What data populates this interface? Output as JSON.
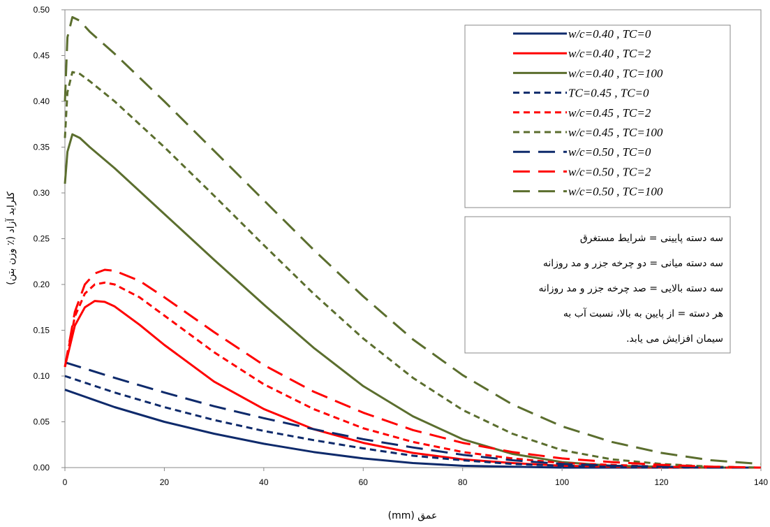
{
  "chart_data": {
    "type": "line",
    "xlabel": "عمق (mm)",
    "ylabel": "کلراید آزاد (٪ وزن بتن)",
    "xlim": [
      0,
      140
    ],
    "ylim": [
      0,
      0.5
    ],
    "x_ticks": [
      "0",
      "20",
      "40",
      "60",
      "80",
      "100",
      "120",
      "140"
    ],
    "y_ticks": [
      "0.00",
      "0.05",
      "0.10",
      "0.15",
      "0.20",
      "0.25",
      "0.30",
      "0.35",
      "0.40",
      "0.45",
      "0.50"
    ],
    "grid": false,
    "legend_position": "top-right",
    "colors": {
      "navy": "#0e2a6b",
      "red": "#ff0000",
      "olive": "#5b6e2e"
    },
    "series": [
      {
        "name": "w/c=0.40 , TC=0",
        "color": "navy",
        "dash": "solid",
        "x": [
          0,
          10,
          20,
          30,
          40,
          50,
          60,
          70,
          80,
          90,
          100,
          110,
          120,
          130,
          140
        ],
        "y": [
          0.085,
          0.066,
          0.05,
          0.037,
          0.026,
          0.017,
          0.01,
          0.005,
          0.002,
          0.001,
          0.0,
          0.0,
          0.0,
          0.0,
          0.0
        ]
      },
      {
        "name": "w/c=0.40 , TC=2",
        "color": "red",
        "dash": "solid",
        "x": [
          0,
          2,
          4,
          6,
          8,
          10,
          15,
          20,
          30,
          40,
          50,
          60,
          70,
          80,
          90,
          100,
          110,
          120,
          130,
          140
        ],
        "y": [
          0.11,
          0.155,
          0.175,
          0.182,
          0.181,
          0.176,
          0.156,
          0.134,
          0.094,
          0.064,
          0.042,
          0.027,
          0.016,
          0.009,
          0.005,
          0.002,
          0.001,
          0.0,
          0.0,
          0.0
        ]
      },
      {
        "name": "w/c=0.40 , TC=100",
        "color": "olive",
        "dash": "solid",
        "x": [
          0,
          0.5,
          1.5,
          3,
          5,
          10,
          20,
          30,
          40,
          50,
          60,
          70,
          80,
          90,
          100,
          110,
          120,
          130,
          140
        ],
        "y": [
          0.31,
          0.345,
          0.364,
          0.36,
          0.35,
          0.327,
          0.277,
          0.227,
          0.178,
          0.131,
          0.089,
          0.056,
          0.031,
          0.015,
          0.006,
          0.002,
          0.001,
          0.0,
          0.0
        ]
      },
      {
        "name": "TC=0.45 , TC=0",
        "color": "navy",
        "dash": "short",
        "x": [
          0,
          10,
          20,
          30,
          40,
          50,
          60,
          70,
          80,
          90,
          100,
          110,
          120,
          130,
          140
        ],
        "y": [
          0.1,
          0.082,
          0.066,
          0.052,
          0.04,
          0.03,
          0.021,
          0.013,
          0.008,
          0.004,
          0.002,
          0.001,
          0.0,
          0.0,
          0.0
        ]
      },
      {
        "name": "w/c=0.45 , TC=2",
        "color": "red",
        "dash": "short",
        "x": [
          0,
          2,
          4,
          6,
          8,
          10,
          15,
          20,
          30,
          40,
          50,
          60,
          70,
          80,
          90,
          100,
          110,
          120,
          130,
          140
        ],
        "y": [
          0.11,
          0.165,
          0.19,
          0.2,
          0.202,
          0.2,
          0.186,
          0.166,
          0.126,
          0.091,
          0.064,
          0.043,
          0.028,
          0.017,
          0.01,
          0.005,
          0.003,
          0.001,
          0.0,
          0.0
        ]
      },
      {
        "name": "w/c=0.45 , TC=100",
        "color": "olive",
        "dash": "short",
        "x": [
          0,
          0.5,
          1.5,
          3,
          5,
          10,
          20,
          30,
          40,
          50,
          60,
          70,
          80,
          90,
          100,
          110,
          120,
          130,
          140
        ],
        "y": [
          0.36,
          0.41,
          0.432,
          0.43,
          0.422,
          0.4,
          0.35,
          0.297,
          0.243,
          0.19,
          0.141,
          0.098,
          0.063,
          0.037,
          0.019,
          0.009,
          0.004,
          0.001,
          0.0
        ]
      },
      {
        "name": "w/c=0.50 , TC=0",
        "color": "navy",
        "dash": "long",
        "x": [
          0,
          10,
          20,
          30,
          40,
          50,
          60,
          70,
          80,
          90,
          100,
          110,
          120,
          130,
          140
        ],
        "y": [
          0.115,
          0.098,
          0.082,
          0.067,
          0.054,
          0.042,
          0.031,
          0.022,
          0.014,
          0.008,
          0.004,
          0.002,
          0.001,
          0.0,
          0.0
        ]
      },
      {
        "name": "w/c=0.50 , TC=2",
        "color": "red",
        "dash": "long",
        "x": [
          0,
          2,
          4,
          6,
          8,
          10,
          15,
          20,
          30,
          40,
          50,
          60,
          70,
          80,
          90,
          100,
          110,
          120,
          130,
          140
        ],
        "y": [
          0.11,
          0.17,
          0.2,
          0.212,
          0.216,
          0.215,
          0.204,
          0.186,
          0.148,
          0.112,
          0.083,
          0.06,
          0.041,
          0.027,
          0.017,
          0.01,
          0.006,
          0.003,
          0.001,
          0.0
        ]
      },
      {
        "name": "w/c=0.50 , TC=100",
        "color": "olive",
        "dash": "long",
        "x": [
          0,
          0.5,
          1.5,
          3,
          5,
          10,
          20,
          30,
          40,
          50,
          60,
          70,
          80,
          90,
          100,
          110,
          120,
          130,
          140
        ],
        "y": [
          0.4,
          0.47,
          0.492,
          0.488,
          0.476,
          0.452,
          0.4,
          0.346,
          0.292,
          0.238,
          0.187,
          0.14,
          0.101,
          0.069,
          0.045,
          0.028,
          0.016,
          0.008,
          0.004
        ]
      }
    ],
    "annotations": [
      "سه دسته پایینی = شرایط مستغرق",
      "سه دسته میانی = دو چرخه جزر و مد روزانه",
      "سه دسته بالایی = صد چرخه جزر و مد روزانه",
      "هر دسته = از پایین به بالا، نسبت آب به",
      "سیمان افزایش می یابد."
    ]
  }
}
